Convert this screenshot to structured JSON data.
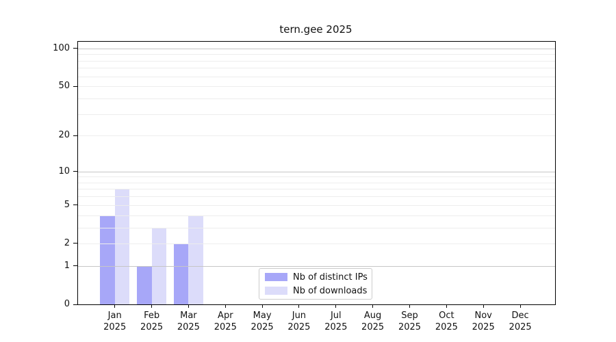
{
  "colors": {
    "series_ips": "#a7a7f8",
    "series_downloads": "#dcdcfa",
    "grid_minor": "#ededed",
    "grid_major": "#c6c6c6",
    "spine": "#000000",
    "legend_border": "#cccccc",
    "background": "#ffffff"
  },
  "chart_data": {
    "type": "bar",
    "title": "tern.gee 2025",
    "categories": [
      "Jan\n2025",
      "Feb\n2025",
      "Mar\n2025",
      "Apr\n2025",
      "May\n2025",
      "Jun\n2025",
      "Jul\n2025",
      "Aug\n2025",
      "Sep\n2025",
      "Oct\n2025",
      "Nov\n2025",
      "Dec\n2025"
    ],
    "series": [
      {
        "name": "Nb of distinct IPs",
        "color": "#a7a7f8",
        "values": [
          4,
          1,
          2,
          0,
          0,
          0,
          0,
          0,
          0,
          0,
          0,
          0
        ]
      },
      {
        "name": "Nb of downloads",
        "color": "#dcdcfa",
        "values": [
          7,
          3,
          4,
          0,
          0,
          0,
          0,
          0,
          0,
          0,
          0,
          0
        ]
      }
    ],
    "xlabel": "",
    "ylabel": "",
    "y_axis": {
      "scale": "log2(1+x)",
      "ticks": [
        0,
        1,
        2,
        5,
        10,
        20,
        50,
        100
      ],
      "minor_gridlines": [
        2,
        3,
        4,
        5,
        6,
        7,
        8,
        9,
        20,
        30,
        40,
        50,
        60,
        70,
        80,
        90
      ],
      "major_gridlines": [
        1,
        10,
        100
      ],
      "ylim": [
        0,
        114
      ]
    },
    "grid": true,
    "legend_position": "lower center"
  }
}
